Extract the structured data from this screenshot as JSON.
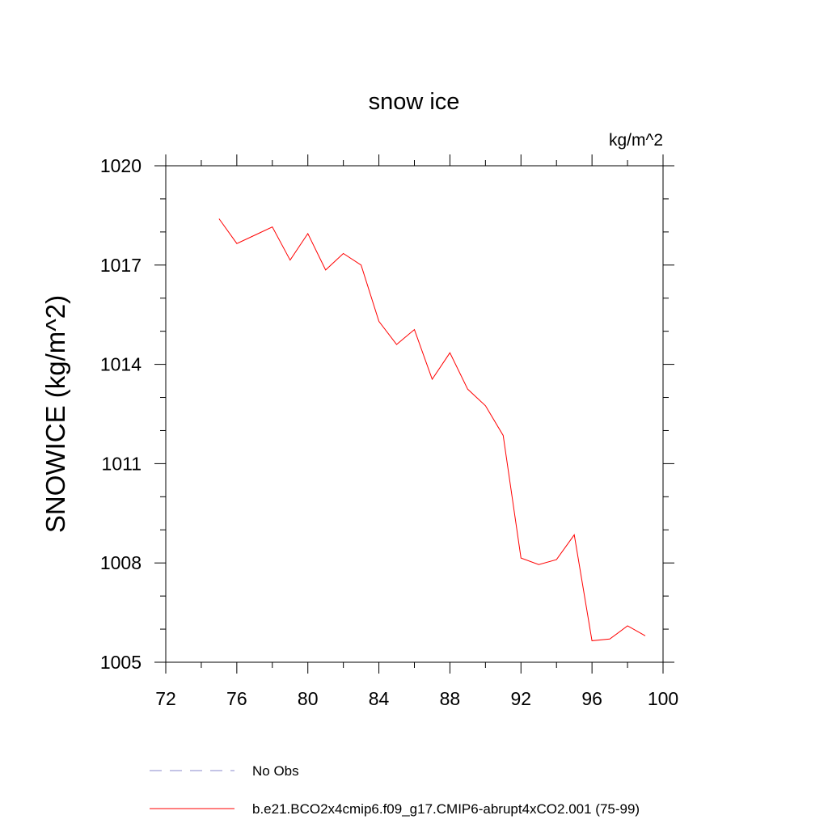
{
  "chart_data": {
    "type": "line",
    "title": "snow ice",
    "units_label": "kg/m^2",
    "ylabel": "SNOWICE  (kg/m^2)",
    "xlabel": "",
    "xlim": [
      72,
      100
    ],
    "ylim": [
      1005,
      1020
    ],
    "x_ticks": [
      72,
      76,
      80,
      84,
      88,
      92,
      96,
      100
    ],
    "y_ticks": [
      1005,
      1008,
      1011,
      1014,
      1017,
      1020
    ],
    "x_minor_step": 2,
    "y_minor_step": 1,
    "grid": false,
    "legend": {
      "placement": "bottom",
      "entries": [
        {
          "label": "No Obs",
          "color": "#8888cc",
          "style": "dashed"
        },
        {
          "label": "b.e21.BCO2x4cmip6.f09_g17.CMIP6-abrupt4xCO2.001 (75-99)",
          "color": "#ff0000",
          "style": "solid"
        }
      ]
    },
    "series": [
      {
        "name": "b.e21.BCO2x4cmip6.f09_g17.CMIP6-abrupt4xCO2.001 (75-99)",
        "color": "#ff0000",
        "x": [
          75,
          76,
          77,
          78,
          79,
          80,
          81,
          82,
          83,
          84,
          85,
          86,
          87,
          88,
          89,
          90,
          91,
          92,
          93,
          94,
          95,
          96,
          97,
          98,
          99
        ],
        "y": [
          1018.4,
          1017.65,
          1017.9,
          1018.15,
          1017.15,
          1017.95,
          1016.85,
          1017.35,
          1017.0,
          1015.3,
          1014.6,
          1015.05,
          1013.55,
          1014.35,
          1013.25,
          1012.75,
          1011.85,
          1008.15,
          1007.95,
          1008.1,
          1008.85,
          1005.65,
          1005.7,
          1006.1,
          1005.8
        ]
      }
    ]
  }
}
